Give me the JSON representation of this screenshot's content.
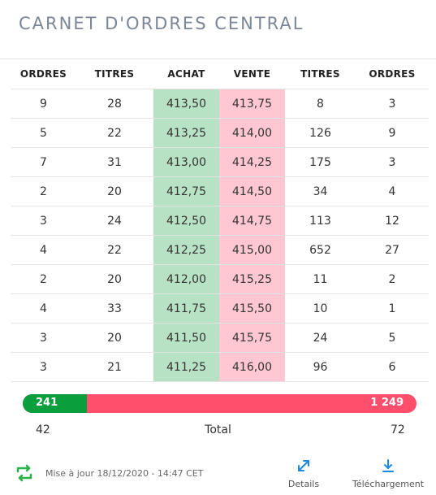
{
  "title": "CARNET D'ORDRES CENTRAL",
  "headers": [
    "ORDRES",
    "TITRES",
    "ACHAT",
    "VENTE",
    "TITRES",
    "ORDRES"
  ],
  "rows": [
    [
      "9",
      "28",
      "413,50",
      "413,75",
      "8",
      "3"
    ],
    [
      "5",
      "22",
      "413,25",
      "414,00",
      "126",
      "9"
    ],
    [
      "7",
      "31",
      "413,00",
      "414,25",
      "175",
      "3"
    ],
    [
      "2",
      "20",
      "412,75",
      "414,50",
      "34",
      "4"
    ],
    [
      "3",
      "24",
      "412,50",
      "414,75",
      "113",
      "12"
    ],
    [
      "4",
      "22",
      "412,25",
      "415,00",
      "652",
      "27"
    ],
    [
      "2",
      "20",
      "412,00",
      "415,25",
      "11",
      "2"
    ],
    [
      "4",
      "33",
      "411,75",
      "415,50",
      "10",
      "1"
    ],
    [
      "3",
      "20",
      "411,50",
      "415,75",
      "24",
      "5"
    ],
    [
      "3",
      "21",
      "411,25",
      "416,00",
      "96",
      "6"
    ]
  ],
  "volume_bar": {
    "buy_label": "241",
    "sell_label": "1 249",
    "buy_fraction": 0.162,
    "buy_color": "#0a9e3c",
    "sell_color": "#ff4f6d"
  },
  "totals": {
    "left": "42",
    "label": "Total",
    "right": "72"
  },
  "footer": {
    "refresh_icon": "refresh-icon",
    "updated_text": "Mise à jour 18/12/2020 - 14:47 CET",
    "details_label": "Details",
    "details_icon": "expand-icon",
    "download_label": "Téléchargement",
    "download_icon": "download-icon"
  },
  "colors": {
    "buy_cell": "#b8e2c4",
    "sell_cell": "#ffc7d1",
    "accent": "#1e88e5",
    "title": "#7b8797"
  }
}
